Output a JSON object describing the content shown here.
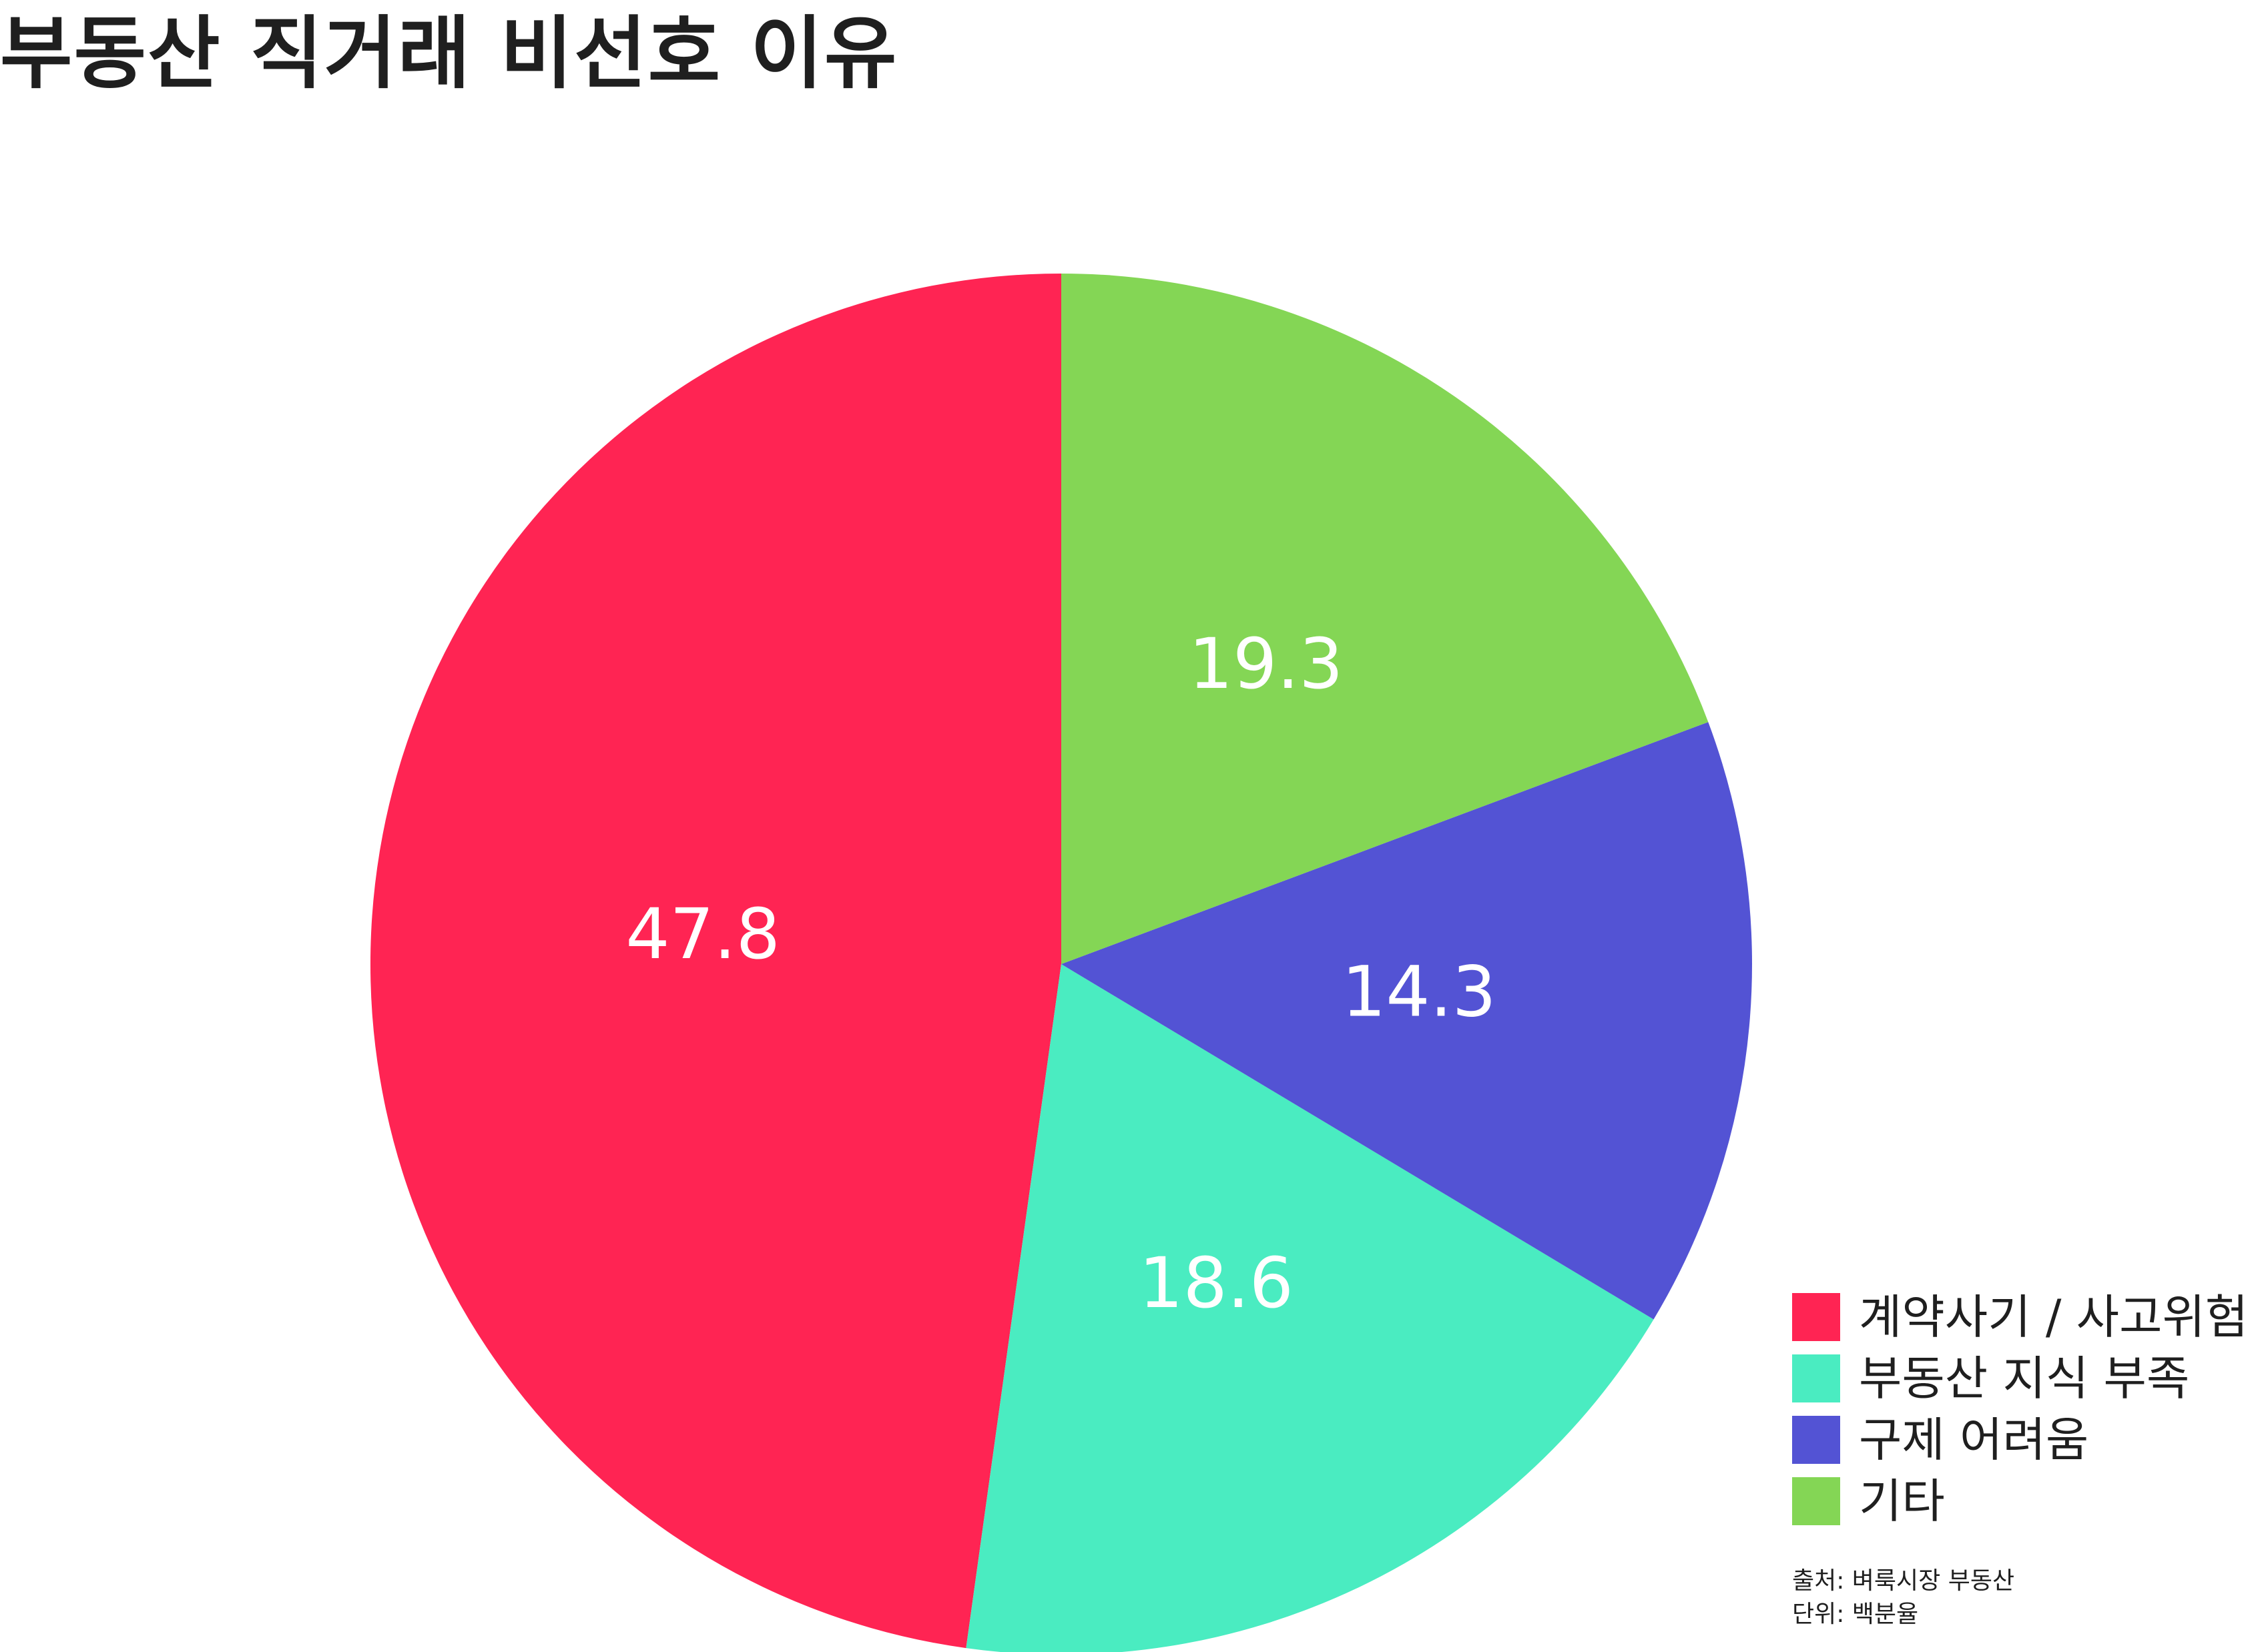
{
  "chart_data": {
    "type": "pie",
    "title": "부동산 직거래 비선호 이유",
    "categories": [
      "계약사기 / 사고위험",
      "부동산 지식 부족",
      "구제 어려움",
      "기타"
    ],
    "values": [
      47.8,
      18.6,
      14.3,
      19.3
    ],
    "colors": [
      "#ff2453",
      "#4aecc1",
      "#5353d4",
      "#84d655"
    ],
    "data_labels": [
      "47.8",
      "18.6",
      "14.3",
      "19.3"
    ],
    "legend_position": "bottom-right",
    "start_angle_deg": 0,
    "direction": "counterclockwise",
    "source": "출처: 벼룩시장 부동산",
    "unit": "단위: 백분율"
  }
}
